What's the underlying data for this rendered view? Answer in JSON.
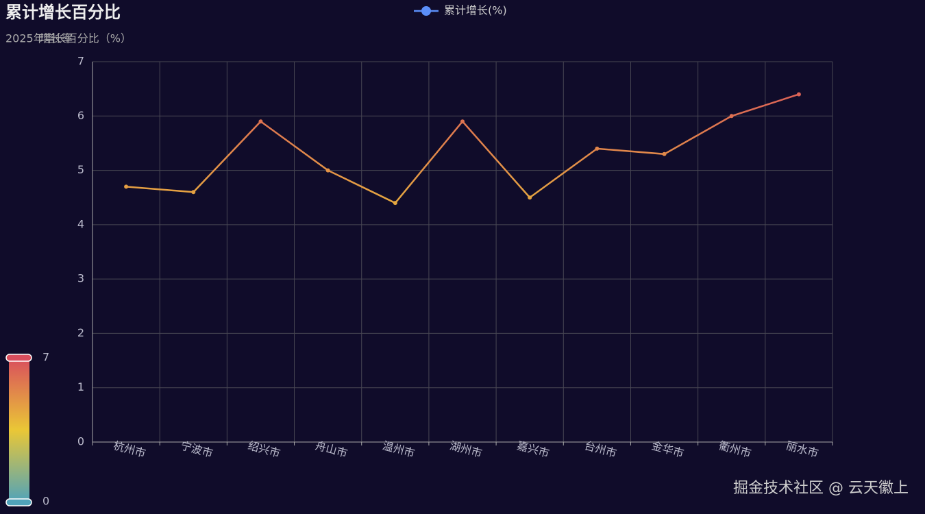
{
  "chart_data": {
    "type": "line",
    "title": "累计增长百分比",
    "subtitle": "2025年增长百分比（%）",
    "y_axis_name": "增长率",
    "categories": [
      "杭州市",
      "宁波市",
      "绍兴市",
      "舟山市",
      "温州市",
      "湖州市",
      "嘉兴市",
      "台州市",
      "金华市",
      "衢州市",
      "丽水市"
    ],
    "series": [
      {
        "name": "累计增长(%)",
        "color": "#5b8ff9",
        "values": [
          4.7,
          4.6,
          5.9,
          5.0,
          4.4,
          5.9,
          4.5,
          5.4,
          5.3,
          6.0,
          6.4
        ]
      }
    ],
    "ylim": [
      0,
      7
    ],
    "yticks": [
      0,
      1,
      2,
      3,
      4,
      5,
      6,
      7
    ],
    "grid": true,
    "visual_map": {
      "min": 0,
      "max": 7,
      "colors": [
        "#50a3ba",
        "#eac736",
        "#d94e5d"
      ]
    },
    "watermark": "掘金技术社区 @ 云天徽上"
  }
}
